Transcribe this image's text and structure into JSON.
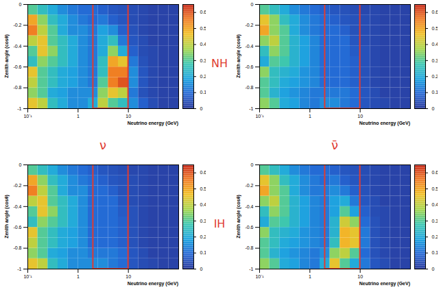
{
  "chart_data": {
    "type": "heatmap",
    "xlabel": "Neutrino energy (GeV)",
    "ylabel": "Zenith angle (cosθ)",
    "log": "x",
    "xlim": [
      0.1,
      100
    ],
    "xticks": [
      {
        "value": 0.1,
        "label": "10⁻¹"
      },
      1,
      10
    ],
    "ylim": [
      -1,
      0
    ],
    "yticks": [
      -1,
      -0.8,
      -0.6,
      -0.4,
      -0.2,
      0
    ],
    "colorbar_lim": [
      0,
      0.65
    ],
    "colorbar_ticks": [
      0,
      0.1,
      0.2,
      0.3,
      0.4,
      0.5,
      0.6
    ],
    "row_labels": [
      "NH",
      "IH"
    ],
    "column_labels": [
      "ν",
      "ν̄"
    ],
    "highlight": {
      "xlim": [
        2,
        10
      ],
      "ylim": [
        -1,
        0
      ],
      "color": "#e03c31"
    },
    "x_edges": [
      0.1,
      0.158,
      0.251,
      0.398,
      0.631,
      1,
      1.585,
      2.512,
      3.981,
      6.31,
      10,
      15.85,
      25.12,
      39.81,
      63.1,
      100
    ],
    "y_edges": [
      -1,
      -0.9,
      -0.8,
      -0.7,
      -0.6,
      -0.5,
      -0.4,
      -0.3,
      -0.2,
      -0.1,
      0
    ],
    "panels": [
      {
        "cells": [
          [
            0.45,
            0.4,
            0.25,
            0.2,
            0.15,
            0.15,
            0.2,
            0.4,
            0.3,
            0.25,
            0.15,
            0.08,
            0.04,
            0.02,
            0.02
          ],
          [
            0.35,
            0.3,
            0.2,
            0.18,
            0.15,
            0.15,
            0.15,
            0.35,
            0.45,
            0.4,
            0.12,
            0.05,
            0.03,
            0.02,
            0.02
          ],
          [
            0.4,
            0.3,
            0.25,
            0.2,
            0.18,
            0.15,
            0.12,
            0.3,
            0.55,
            0.6,
            0.15,
            0.06,
            0.03,
            0.02,
            0.02
          ],
          [
            0.45,
            0.3,
            0.25,
            0.2,
            0.18,
            0.15,
            0.12,
            0.25,
            0.55,
            0.55,
            0.15,
            0.06,
            0.03,
            0.02,
            0.02
          ],
          [
            0.25,
            0.35,
            0.3,
            0.25,
            0.2,
            0.15,
            0.12,
            0.25,
            0.5,
            0.45,
            0.12,
            0.05,
            0.03,
            0.02,
            0.02
          ],
          [
            0.3,
            0.45,
            0.35,
            0.25,
            0.2,
            0.15,
            0.12,
            0.2,
            0.35,
            0.2,
            0.08,
            0.04,
            0.03,
            0.02,
            0.02
          ],
          [
            0.4,
            0.45,
            0.3,
            0.25,
            0.2,
            0.15,
            0.12,
            0.2,
            0.25,
            0.12,
            0.06,
            0.04,
            0.02,
            0.02,
            0.02
          ],
          [
            0.55,
            0.4,
            0.3,
            0.2,
            0.15,
            0.15,
            0.12,
            0.18,
            0.15,
            0.08,
            0.05,
            0.03,
            0.02,
            0.02,
            0.02
          ],
          [
            0.5,
            0.35,
            0.25,
            0.2,
            0.15,
            0.12,
            0.1,
            0.12,
            0.08,
            0.06,
            0.04,
            0.03,
            0.02,
            0.02,
            0.02
          ],
          [
            0.3,
            0.25,
            0.2,
            0.15,
            0.12,
            0.1,
            0.1,
            0.08,
            0.06,
            0.05,
            0.04,
            0.03,
            0.02,
            0.02,
            0.02
          ]
        ]
      },
      {
        "cells": [
          [
            0.35,
            0.3,
            0.2,
            0.18,
            0.14,
            0.12,
            0.15,
            0.15,
            0.12,
            0.1,
            0.06,
            0.04,
            0.03,
            0.02,
            0.02
          ],
          [
            0.3,
            0.22,
            0.18,
            0.16,
            0.14,
            0.12,
            0.12,
            0.12,
            0.12,
            0.1,
            0.06,
            0.04,
            0.02,
            0.02,
            0.02
          ],
          [
            0.3,
            0.25,
            0.2,
            0.18,
            0.16,
            0.14,
            0.1,
            0.1,
            0.1,
            0.08,
            0.05,
            0.03,
            0.02,
            0.02,
            0.02
          ],
          [
            0.35,
            0.25,
            0.22,
            0.2,
            0.16,
            0.14,
            0.1,
            0.1,
            0.1,
            0.08,
            0.05,
            0.03,
            0.02,
            0.02,
            0.02
          ],
          [
            0.2,
            0.3,
            0.28,
            0.22,
            0.18,
            0.14,
            0.1,
            0.1,
            0.1,
            0.08,
            0.05,
            0.03,
            0.02,
            0.02,
            0.02
          ],
          [
            0.25,
            0.35,
            0.3,
            0.22,
            0.18,
            0.14,
            0.1,
            0.1,
            0.1,
            0.07,
            0.05,
            0.03,
            0.02,
            0.02,
            0.02
          ],
          [
            0.35,
            0.4,
            0.3,
            0.22,
            0.18,
            0.14,
            0.1,
            0.1,
            0.1,
            0.06,
            0.04,
            0.03,
            0.02,
            0.02,
            0.02
          ],
          [
            0.5,
            0.35,
            0.3,
            0.2,
            0.15,
            0.12,
            0.1,
            0.1,
            0.08,
            0.05,
            0.04,
            0.03,
            0.02,
            0.02,
            0.02
          ],
          [
            0.45,
            0.35,
            0.25,
            0.2,
            0.15,
            0.12,
            0.1,
            0.08,
            0.06,
            0.05,
            0.04,
            0.03,
            0.02,
            0.02,
            0.02
          ],
          [
            0.3,
            0.25,
            0.2,
            0.15,
            0.12,
            0.1,
            0.08,
            0.06,
            0.05,
            0.04,
            0.03,
            0.03,
            0.02,
            0.02,
            0.02
          ]
        ]
      },
      {
        "cells": [
          [
            0.45,
            0.4,
            0.25,
            0.2,
            0.15,
            0.15,
            0.15,
            0.15,
            0.12,
            0.1,
            0.06,
            0.04,
            0.03,
            0.02,
            0.02
          ],
          [
            0.35,
            0.3,
            0.2,
            0.18,
            0.15,
            0.15,
            0.12,
            0.12,
            0.12,
            0.1,
            0.06,
            0.04,
            0.02,
            0.02,
            0.02
          ],
          [
            0.4,
            0.3,
            0.25,
            0.2,
            0.18,
            0.15,
            0.1,
            0.1,
            0.1,
            0.08,
            0.05,
            0.03,
            0.02,
            0.02,
            0.02
          ],
          [
            0.45,
            0.3,
            0.25,
            0.2,
            0.18,
            0.15,
            0.1,
            0.1,
            0.1,
            0.08,
            0.05,
            0.03,
            0.02,
            0.02,
            0.02
          ],
          [
            0.25,
            0.35,
            0.3,
            0.25,
            0.2,
            0.15,
            0.1,
            0.1,
            0.1,
            0.08,
            0.05,
            0.03,
            0.02,
            0.02,
            0.02
          ],
          [
            0.3,
            0.45,
            0.35,
            0.25,
            0.2,
            0.15,
            0.1,
            0.1,
            0.1,
            0.07,
            0.05,
            0.03,
            0.02,
            0.02,
            0.02
          ],
          [
            0.4,
            0.45,
            0.3,
            0.25,
            0.2,
            0.15,
            0.1,
            0.1,
            0.1,
            0.06,
            0.04,
            0.03,
            0.02,
            0.02,
            0.02
          ],
          [
            0.55,
            0.4,
            0.3,
            0.2,
            0.15,
            0.15,
            0.1,
            0.1,
            0.08,
            0.05,
            0.04,
            0.03,
            0.02,
            0.02,
            0.02
          ],
          [
            0.5,
            0.35,
            0.25,
            0.2,
            0.15,
            0.12,
            0.1,
            0.08,
            0.06,
            0.05,
            0.04,
            0.03,
            0.02,
            0.02,
            0.02
          ],
          [
            0.3,
            0.25,
            0.2,
            0.15,
            0.12,
            0.1,
            0.08,
            0.06,
            0.05,
            0.04,
            0.03,
            0.03,
            0.02,
            0.02,
            0.02
          ]
        ]
      },
      {
        "cells": [
          [
            0.35,
            0.3,
            0.2,
            0.18,
            0.14,
            0.12,
            0.2,
            0.45,
            0.3,
            0.2,
            0.12,
            0.06,
            0.04,
            0.02,
            0.02
          ],
          [
            0.3,
            0.22,
            0.18,
            0.16,
            0.14,
            0.12,
            0.15,
            0.35,
            0.4,
            0.3,
            0.1,
            0.05,
            0.03,
            0.02,
            0.02
          ],
          [
            0.3,
            0.25,
            0.2,
            0.18,
            0.16,
            0.14,
            0.12,
            0.25,
            0.48,
            0.45,
            0.12,
            0.05,
            0.03,
            0.02,
            0.02
          ],
          [
            0.35,
            0.25,
            0.22,
            0.2,
            0.16,
            0.14,
            0.12,
            0.22,
            0.48,
            0.45,
            0.12,
            0.05,
            0.03,
            0.02,
            0.02
          ],
          [
            0.2,
            0.3,
            0.28,
            0.22,
            0.18,
            0.14,
            0.12,
            0.22,
            0.42,
            0.35,
            0.1,
            0.05,
            0.03,
            0.02,
            0.02
          ],
          [
            0.25,
            0.35,
            0.3,
            0.22,
            0.18,
            0.14,
            0.12,
            0.18,
            0.3,
            0.18,
            0.08,
            0.04,
            0.03,
            0.02,
            0.02
          ],
          [
            0.35,
            0.4,
            0.3,
            0.22,
            0.18,
            0.14,
            0.12,
            0.18,
            0.2,
            0.12,
            0.06,
            0.04,
            0.02,
            0.02,
            0.02
          ],
          [
            0.5,
            0.35,
            0.3,
            0.2,
            0.15,
            0.12,
            0.12,
            0.15,
            0.12,
            0.08,
            0.05,
            0.03,
            0.02,
            0.02,
            0.02
          ],
          [
            0.45,
            0.35,
            0.25,
            0.2,
            0.15,
            0.12,
            0.1,
            0.12,
            0.08,
            0.06,
            0.04,
            0.03,
            0.02,
            0.02,
            0.02
          ],
          [
            0.3,
            0.25,
            0.2,
            0.15,
            0.12,
            0.1,
            0.1,
            0.08,
            0.06,
            0.05,
            0.04,
            0.03,
            0.02,
            0.02,
            0.02
          ]
        ]
      }
    ]
  }
}
